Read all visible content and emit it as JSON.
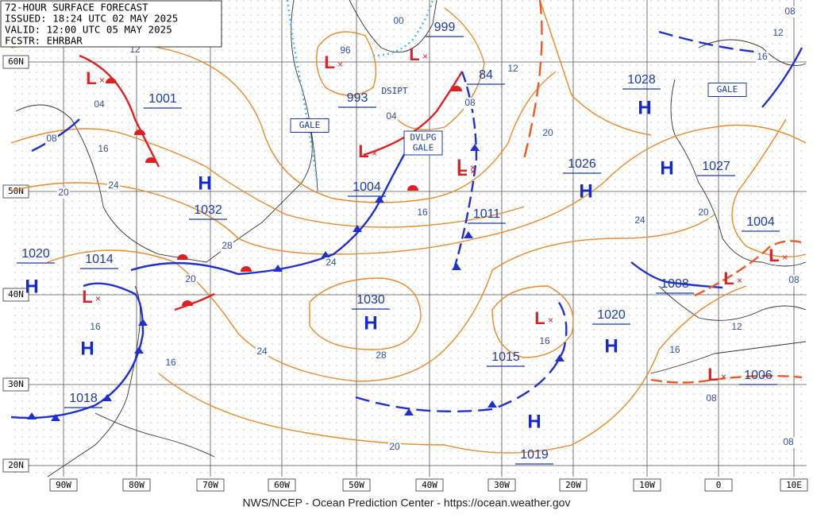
{
  "header": {
    "lines": [
      "72-HOUR SURFACE FORECAST",
      "ISSUED: 18:24 UTC 02 MAY 2025",
      "VALID: 12:00 UTC 05 MAY 2025",
      "FCSTR: EHRBAR"
    ]
  },
  "footer": "NWS/NCEP - Ocean Prediction Center - https://ocean.weather.gov",
  "grid": {
    "lat_labels": [
      "60N",
      "50N",
      "40N",
      "30N",
      "20N"
    ],
    "lon_labels": [
      "90W",
      "80W",
      "70W",
      "60W",
      "50W",
      "40W",
      "30W",
      "20W",
      "10W",
      "0",
      "10E"
    ]
  },
  "centers": [
    {
      "symbol": "L",
      "pressure": "1001"
    },
    {
      "symbol": "L",
      "pressure": "993"
    },
    {
      "symbol": "L",
      "pressure": "999"
    },
    {
      "symbol": "L",
      "pressure": "84"
    },
    {
      "symbol": "L",
      "pressure": "1004"
    },
    {
      "symbol": "L",
      "pressure": "1011"
    },
    {
      "symbol": "H",
      "pressure": "1032"
    },
    {
      "symbol": "H",
      "pressure": "1020"
    },
    {
      "symbol": "L",
      "pressure": "1014"
    },
    {
      "symbol": "H",
      "pressure": "1018"
    },
    {
      "symbol": "H",
      "pressure": "1030"
    },
    {
      "symbol": "L",
      "pressure": "1015"
    },
    {
      "symbol": "H",
      "pressure": "1020"
    },
    {
      "symbol": "H",
      "pressure": "1019"
    },
    {
      "symbol": "H",
      "pressure": "1028"
    },
    {
      "symbol": "H",
      "pressure": "1026"
    },
    {
      "symbol": "H",
      "pressure": "1027"
    },
    {
      "symbol": "L",
      "pressure": "1004"
    },
    {
      "symbol": "L",
      "pressure": "1008"
    },
    {
      "symbol": "L",
      "pressure": "1006"
    }
  ],
  "isobar_labels": [
    "12",
    "04",
    "08",
    "16",
    "24",
    "20",
    "96",
    "00",
    "04",
    "08",
    "12",
    "20",
    "16",
    "28",
    "24",
    "20",
    "16",
    "16",
    "24",
    "28",
    "20",
    "16",
    "24",
    "20",
    "12",
    "16",
    "08",
    "08",
    "08",
    "08",
    "12",
    "16"
  ],
  "notices": [
    {
      "lines": [
        "GALE"
      ]
    },
    {
      "lines": [
        "DSIPT"
      ]
    },
    {
      "lines": [
        "DVLPG",
        "GALE"
      ]
    },
    {
      "lines": [
        "GALE"
      ]
    }
  ]
}
